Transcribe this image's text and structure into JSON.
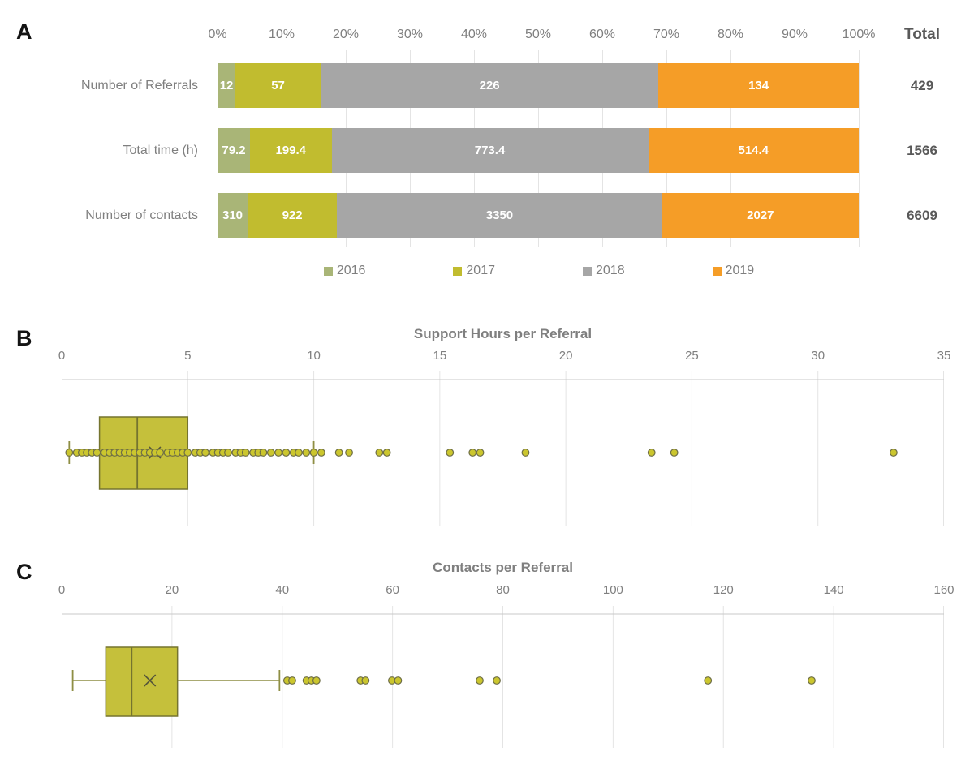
{
  "panels": {
    "a_letter": "A",
    "b_letter": "B",
    "c_letter": "C"
  },
  "colors": {
    "grid": "#e4e4e4",
    "axis_line": "#c9c9c9",
    "box_fill": "#c5c03b",
    "box_stroke": "#75742f",
    "whisker": "#8e8e44",
    "point_fill": "#cbc62e",
    "point_stroke": "#6e6e46",
    "mean_stroke": "#55553a",
    "text_gray": "#7f7f7f",
    "text_dark": "#595959"
  },
  "chart_data": [
    {
      "id": "A",
      "type": "bar",
      "subtype": "stacked-100-horizontal",
      "title": "",
      "total_header": "Total",
      "x_ticks": [
        "0%",
        "10%",
        "20%",
        "30%",
        "40%",
        "50%",
        "60%",
        "70%",
        "80%",
        "90%",
        "100%"
      ],
      "categories": [
        "Number of Referrals",
        "Total time (h)",
        "Number of contacts"
      ],
      "series": [
        {
          "name": "2016",
          "color": "#a9b577",
          "values": [
            12,
            79.2,
            310
          ]
        },
        {
          "name": "2017",
          "color": "#c1bc2f",
          "values": [
            57,
            199.4,
            922
          ]
        },
        {
          "name": "2018",
          "color": "#a6a6a6",
          "values": [
            226,
            773.4,
            3350
          ]
        },
        {
          "name": "2019",
          "color": "#f59d27",
          "values": [
            134,
            514.4,
            2027
          ]
        }
      ],
      "rows": [
        {
          "label": "Number of Referrals",
          "cells": [
            "12",
            "57",
            "226",
            "134"
          ],
          "values": [
            12,
            57,
            226,
            134
          ],
          "total": "429"
        },
        {
          "label": "Total time (h)",
          "cells": [
            "79.2",
            "199.4",
            "773.4",
            "514.4"
          ],
          "values": [
            79.2,
            199.4,
            773.4,
            514.4
          ],
          "total": "1566"
        },
        {
          "label": "Number of contacts",
          "cells": [
            "310",
            "922",
            "3350",
            "2027"
          ],
          "values": [
            310,
            922,
            3350,
            2027
          ],
          "total": "6609"
        }
      ],
      "legend_position": "bottom"
    },
    {
      "id": "B",
      "type": "boxplot",
      "title": "Support Hours per Referral",
      "xlim": [
        0,
        35
      ],
      "x_ticks": [
        0,
        5,
        10,
        15,
        20,
        25,
        30,
        35
      ],
      "box": {
        "min_whisker": 0.3,
        "q1": 1.5,
        "median": 3.0,
        "q3": 5.0,
        "max_whisker": 10.0,
        "mean": 3.7
      },
      "points": [
        0.3,
        0.6,
        0.8,
        1.0,
        1.2,
        1.4,
        1.7,
        1.9,
        2.1,
        2.3,
        2.5,
        2.7,
        2.9,
        3.1,
        3.3,
        3.5,
        3.7,
        3.9,
        4.2,
        4.4,
        4.6,
        4.8,
        5.0,
        5.3,
        5.5,
        5.7,
        6.0,
        6.2,
        6.4,
        6.6,
        6.9,
        7.1,
        7.3,
        7.6,
        7.8,
        8.0,
        8.3,
        8.6,
        8.9,
        9.2,
        9.4,
        9.7,
        10.0,
        10.3,
        11.0,
        11.4,
        12.6,
        12.9,
        15.4,
        16.3,
        16.6,
        18.4,
        23.4,
        24.3,
        33.0
      ]
    },
    {
      "id": "C",
      "type": "boxplot",
      "title": "Contacts per Referral",
      "xlim": [
        0,
        160
      ],
      "x_ticks": [
        0,
        20,
        40,
        60,
        80,
        100,
        120,
        140,
        160
      ],
      "box": {
        "min_whisker": 2.0,
        "q1": 8.0,
        "median": 12.7,
        "q3": 21.0,
        "max_whisker": 39.5,
        "mean": 16.0
      },
      "points": [
        40.9,
        41.8,
        44.4,
        45.3,
        46.2,
        54.2,
        55.1,
        59.9,
        61.0,
        75.8,
        78.9,
        117.2,
        136.0
      ]
    }
  ]
}
